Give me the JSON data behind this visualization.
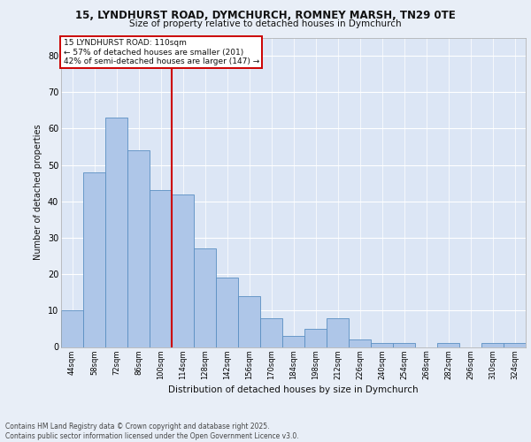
{
  "title_line1": "15, LYNDHURST ROAD, DYMCHURCH, ROMNEY MARSH, TN29 0TE",
  "title_line2": "Size of property relative to detached houses in Dymchurch",
  "xlabel": "Distribution of detached houses by size in Dymchurch",
  "ylabel": "Number of detached properties",
  "bar_labels": [
    "44sqm",
    "58sqm",
    "72sqm",
    "86sqm",
    "100sqm",
    "114sqm",
    "128sqm",
    "142sqm",
    "156sqm",
    "170sqm",
    "184sqm",
    "198sqm",
    "212sqm",
    "226sqm",
    "240sqm",
    "254sqm",
    "268sqm",
    "282sqm",
    "296sqm",
    "310sqm",
    "324sqm"
  ],
  "bar_values": [
    10,
    48,
    63,
    54,
    43,
    42,
    27,
    19,
    14,
    8,
    3,
    5,
    8,
    2,
    1,
    1,
    0,
    1,
    0,
    1,
    1
  ],
  "bar_color": "#aec6e8",
  "bar_edge_color": "#5a8fc2",
  "property_label": "15 LYNDHURST ROAD: 110sqm",
  "annotation_line2": "← 57% of detached houses are smaller (201)",
  "annotation_line3": "42% of semi-detached houses are larger (147) →",
  "vline_color": "#cc0000",
  "vline_x_bin_index": 4.5,
  "annotation_box_color": "#ffffff",
  "annotation_box_edge": "#cc0000",
  "ylim": [
    0,
    85
  ],
  "yticks": [
    0,
    10,
    20,
    30,
    40,
    50,
    60,
    70,
    80
  ],
  "background_color": "#e8eef7",
  "plot_bg_color": "#dce6f5",
  "grid_color": "#ffffff",
  "footer_line1": "Contains HM Land Registry data © Crown copyright and database right 2025.",
  "footer_line2": "Contains public sector information licensed under the Open Government Licence v3.0."
}
